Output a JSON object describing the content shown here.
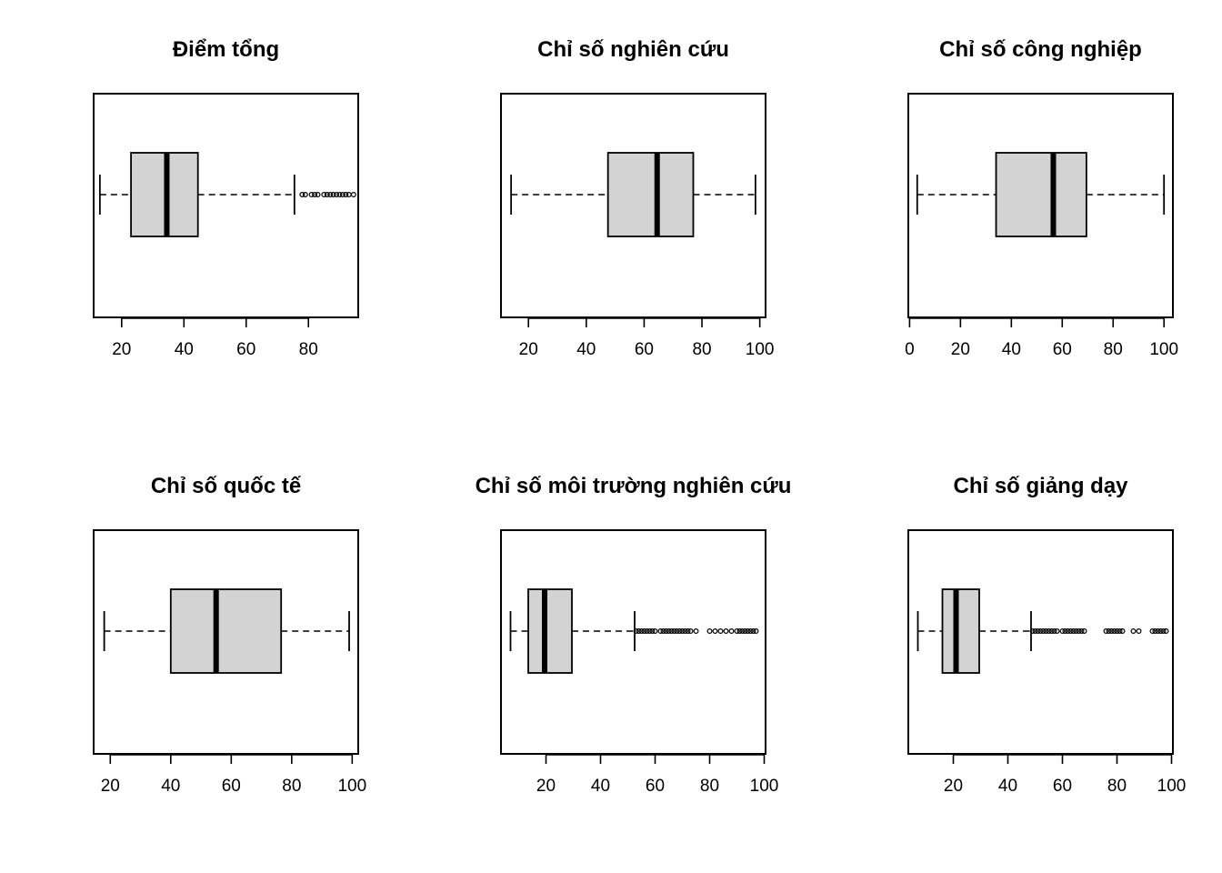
{
  "chart_data": [
    {
      "type": "boxplot",
      "title": "Điểm tổng",
      "orientation": "horizontal",
      "xlim": [
        11,
        96
      ],
      "ticks": [
        20,
        40,
        60,
        80
      ],
      "tick_labels": [
        "20",
        "40",
        "60",
        "80"
      ],
      "whisker_low": 13,
      "q1": 23,
      "median": 34.5,
      "q3": 44.5,
      "whisker_high": 75.5,
      "outliers": [
        78,
        79,
        81,
        82,
        83,
        85,
        86,
        87,
        88,
        89,
        90,
        91,
        92,
        93,
        94.5
      ]
    },
    {
      "type": "boxplot",
      "title": "Chỉ số nghiên cứu",
      "orientation": "horizontal",
      "xlim": [
        10.5,
        102
      ],
      "ticks": [
        20,
        40,
        60,
        80,
        100
      ],
      "tick_labels": [
        "20",
        "40",
        "60",
        "80",
        "100"
      ],
      "whisker_low": 14,
      "q1": 47.5,
      "median": 64.5,
      "q3": 77,
      "whisker_high": 98.5,
      "outliers": []
    },
    {
      "type": "boxplot",
      "title": "Chỉ số công nghiệp",
      "orientation": "horizontal",
      "xlim": [
        -0.5,
        103.5
      ],
      "ticks": [
        0,
        20,
        40,
        60,
        80,
        100
      ],
      "tick_labels": [
        "0",
        "20",
        "40",
        "60",
        "80",
        "100"
      ],
      "whisker_low": 3,
      "q1": 34,
      "median": 56.5,
      "q3": 69.5,
      "whisker_high": 100,
      "outliers": []
    },
    {
      "type": "boxplot",
      "title": "Chỉ số quốc tế",
      "orientation": "horizontal",
      "xlim": [
        14.5,
        102
      ],
      "ticks": [
        20,
        40,
        60,
        80,
        100
      ],
      "tick_labels": [
        "20",
        "40",
        "60",
        "80",
        "100"
      ],
      "whisker_low": 18,
      "q1": 40,
      "median": 55,
      "q3": 76.5,
      "whisker_high": 99,
      "outliers": []
    },
    {
      "type": "boxplot",
      "title": "Chỉ số môi trường nghiên cứu",
      "orientation": "horizontal",
      "xlim": [
        3.5,
        100.5
      ],
      "ticks": [
        20,
        40,
        60,
        80,
        100
      ],
      "tick_labels": [
        "20",
        "40",
        "60",
        "80",
        "100"
      ],
      "whisker_low": 7,
      "q1": 13.5,
      "median": 19.5,
      "q3": 29.5,
      "whisker_high": 52.5,
      "outliers": [
        53,
        54,
        55,
        56,
        57,
        58,
        59,
        60,
        62,
        63,
        64,
        65,
        66,
        67,
        68,
        69,
        70,
        71,
        72,
        73,
        75,
        80,
        82,
        84,
        86,
        88,
        90,
        91,
        92,
        93,
        94,
        95,
        96,
        97
      ]
    },
    {
      "type": "boxplot",
      "title": "Chỉ số giảng dạy",
      "orientation": "horizontal",
      "xlim": [
        3.5,
        100.5
      ],
      "ticks": [
        20,
        40,
        60,
        80,
        100
      ],
      "tick_labels": [
        "20",
        "40",
        "60",
        "80",
        "100"
      ],
      "whisker_low": 7,
      "q1": 16,
      "median": 21,
      "q3": 29.5,
      "whisker_high": 48.5,
      "outliers": [
        49,
        50,
        51,
        52,
        53,
        54,
        55,
        56,
        57,
        58,
        60,
        61,
        62,
        63,
        64,
        65,
        66,
        67,
        68,
        76,
        77,
        78,
        79,
        80,
        81,
        82,
        86,
        88,
        93,
        94,
        95,
        96,
        97,
        98
      ]
    }
  ]
}
